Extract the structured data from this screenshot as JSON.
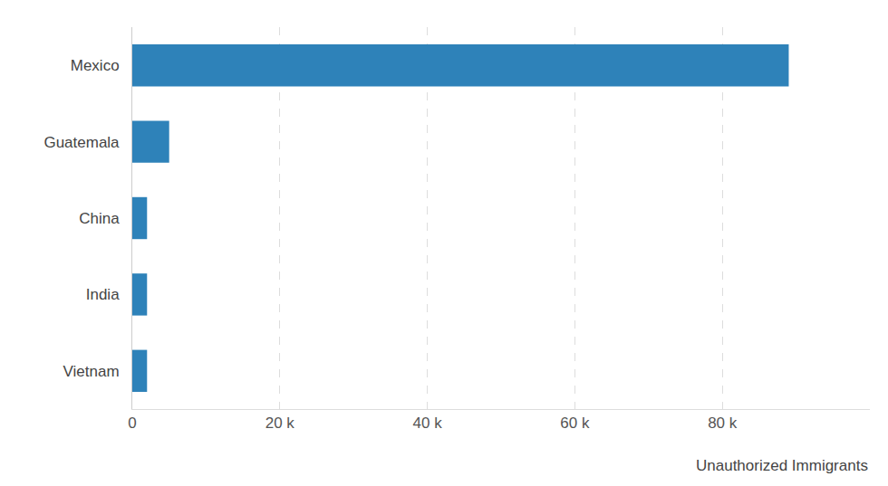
{
  "chart_data": {
    "type": "bar",
    "orientation": "horizontal",
    "categories": [
      "Mexico",
      "Guatemala",
      "China",
      "India",
      "Vietnam"
    ],
    "values": [
      89000,
      5000,
      2000,
      2000,
      2000
    ],
    "color": "#2e82b9",
    "xlabel": "Unauthorized Immigrants",
    "xlim": [
      0,
      100000
    ],
    "xticks": [
      0,
      {
        "value": 20000,
        "label": "20 k"
      },
      {
        "value": 40000,
        "label": "40 k"
      },
      {
        "value": 60000,
        "label": "60 k"
      },
      {
        "value": 80000,
        "label": "80 k"
      }
    ],
    "grid": true
  }
}
